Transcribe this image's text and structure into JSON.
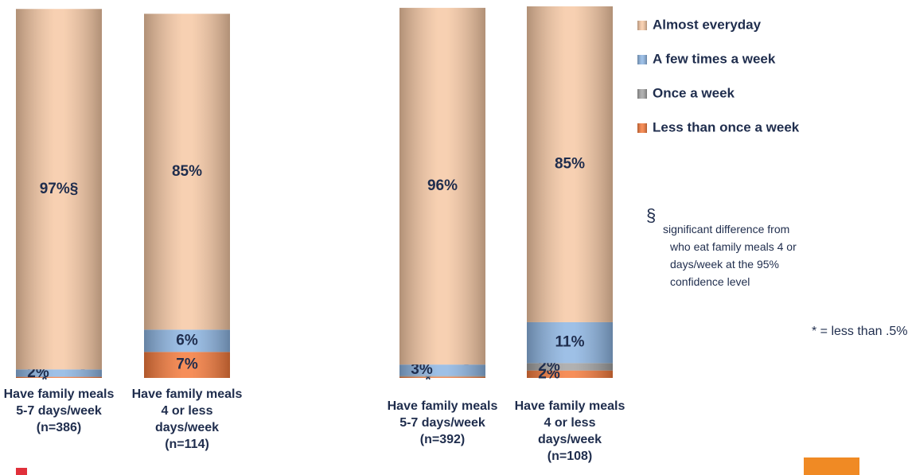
{
  "chart_data": {
    "type": "stacked_bar",
    "categories": [
      "Have family meals 5-7 days/week (n=386)",
      "Have family meals 4 or less days/week (n=114)",
      "Have family meals 5-7 days/week (n=392)",
      "Have family meals 4 or less days/week (n=108)"
    ],
    "ylim": [
      0,
      100
    ],
    "series": [
      {
        "name": "Less than once a week",
        "color": "#f47a3c",
        "values": [
          0.3,
          7,
          0.3,
          2
        ],
        "value_labels": [
          "*",
          "7%",
          "*",
          "2%"
        ]
      },
      {
        "name": "Once a week",
        "color": "#a3a3a3",
        "values": [
          0,
          0,
          0.3,
          2
        ],
        "value_labels": [
          "-",
          "-",
          "*",
          "2%"
        ]
      },
      {
        "name": "A few times a week",
        "color": "#8db5e2",
        "values": [
          2,
          6,
          3,
          11
        ],
        "value_labels": [
          "2%",
          "6%",
          "3%",
          "11%"
        ]
      },
      {
        "name": "Almost everyday",
        "color": "#f6c8a4",
        "values": [
          97,
          85,
          96,
          85
        ],
        "value_labels": [
          "97%§",
          "85%",
          "96%",
          "85%"
        ]
      }
    ],
    "legend": "right",
    "footnote": {
      "symbol": "§",
      "lines": [
        "significant difference from",
        "who eat family meals 4 or",
        "days/week at the 95%",
        "confidence level"
      ]
    },
    "note": "* = less than .5%"
  }
}
